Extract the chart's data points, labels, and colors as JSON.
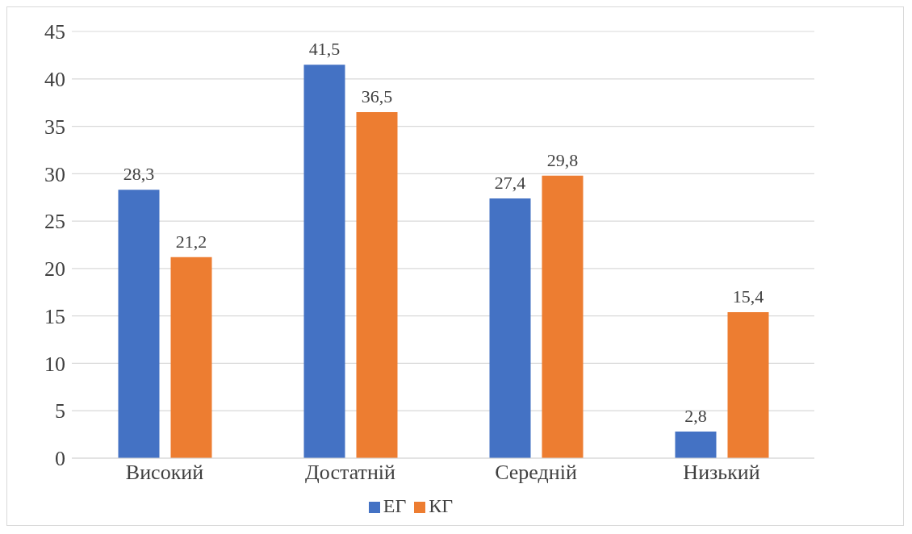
{
  "chart_data": {
    "type": "bar",
    "categories": [
      "Високий",
      "Достатній",
      "Середній",
      "Низький"
    ],
    "series": [
      {
        "name": "ЕГ",
        "color": "#4472c4",
        "values": [
          28.3,
          41.5,
          27.4,
          2.8
        ],
        "value_labels": [
          "28,3",
          "41,5",
          "27,4",
          "2,8"
        ]
      },
      {
        "name": "КГ",
        "color": "#ed7d31",
        "values": [
          21.2,
          36.5,
          29.8,
          15.4
        ],
        "value_labels": [
          "21,2",
          "36,5",
          "29,8",
          "15,4"
        ]
      }
    ],
    "ylim": [
      0,
      45
    ],
    "yticks": [
      0,
      5,
      10,
      15,
      20,
      25,
      30,
      35,
      40,
      45
    ],
    "grid": "y",
    "legend": "bottom"
  }
}
